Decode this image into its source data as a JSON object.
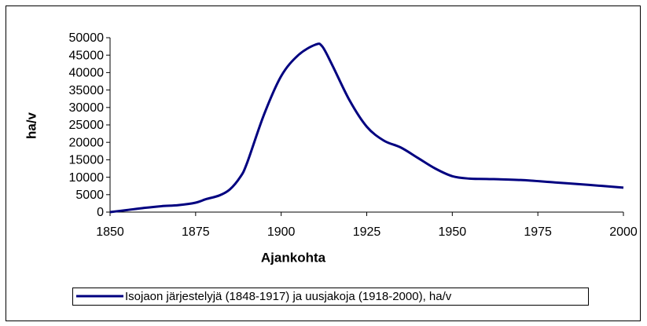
{
  "chart_data": {
    "type": "line",
    "x_label": "Ajankohta",
    "y_label": "ha/v",
    "x": [
      1850,
      1855,
      1860,
      1865,
      1870,
      1875,
      1878,
      1882,
      1885,
      1888,
      1890,
      1895,
      1900,
      1905,
      1910,
      1912,
      1915,
      1920,
      1925,
      1930,
      1935,
      1940,
      1945,
      1950,
      1955,
      1960,
      1970,
      1980,
      1990,
      2000
    ],
    "series": [
      {
        "name": "Isojaon järjestelyjä (1848-1917) ja uusjakoja (1918-2000), ha/v",
        "color": "#000080",
        "values": [
          0,
          600,
          1200,
          1700,
          2000,
          2700,
          3700,
          4800,
          6500,
          10000,
          14000,
          28000,
          39000,
          45000,
          48000,
          47500,
          42000,
          32000,
          24500,
          20500,
          18500,
          15500,
          12500,
          10300,
          9600,
          9500,
          9200,
          8500,
          7800,
          7000
        ]
      }
    ],
    "xlim": [
      1850,
      2000
    ],
    "xticks": [
      1850,
      1875,
      1900,
      1925,
      1950,
      1975,
      2000
    ],
    "ylim": [
      0,
      50000
    ],
    "yticks": [
      0,
      5000,
      10000,
      15000,
      20000,
      25000,
      30000,
      35000,
      40000,
      45000,
      50000
    ],
    "grid": false,
    "legend": "bottom"
  }
}
